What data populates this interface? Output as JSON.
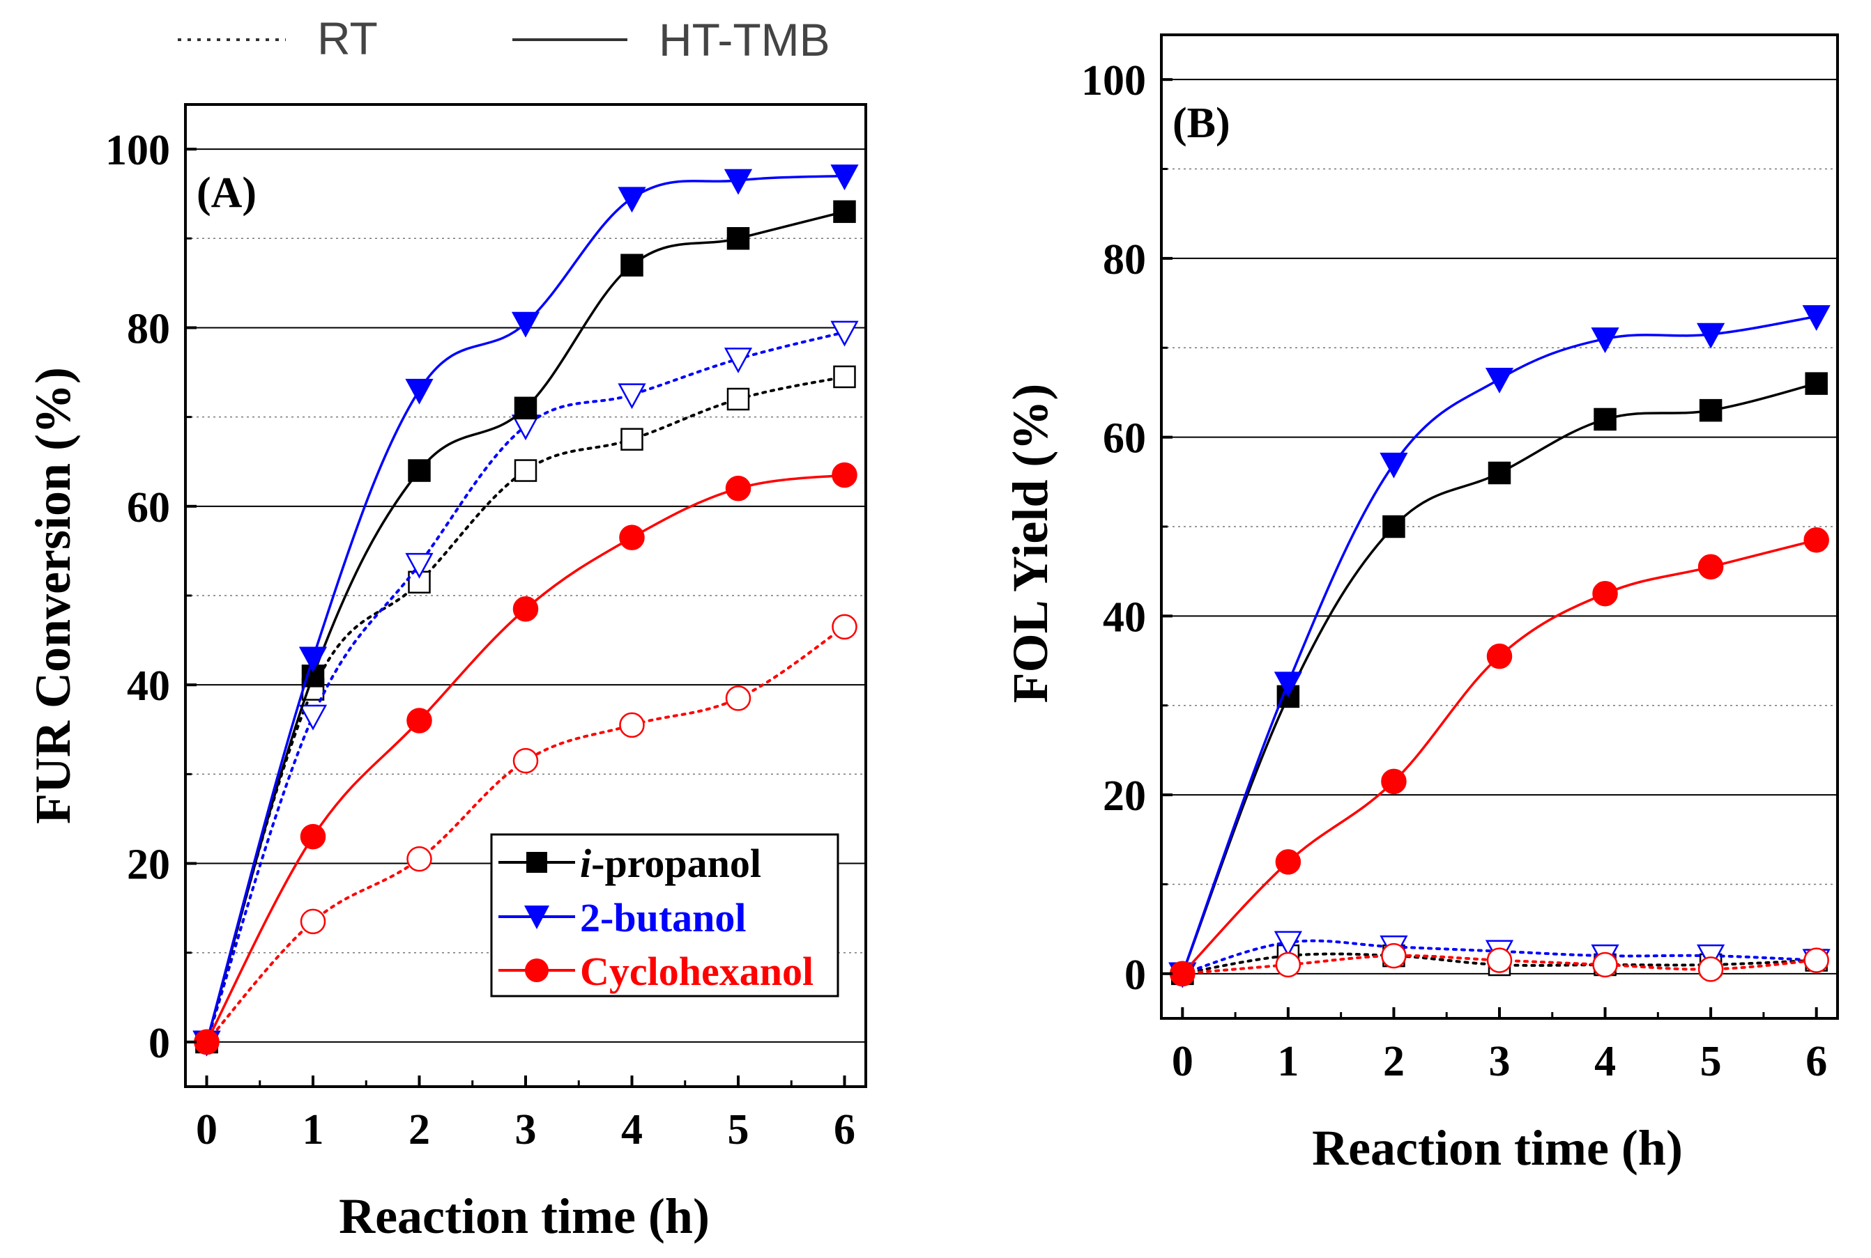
{
  "top_legend": {
    "dotted_label": "RT",
    "solid_label": "HT-TMB"
  },
  "legend": {
    "items": [
      {
        "prefix": "i",
        "text": "-propanol",
        "color": "#000000",
        "marker": "square"
      },
      {
        "prefix": "",
        "text": "2-butanol",
        "color": "#0000ff",
        "marker": "triangle-down"
      },
      {
        "prefix": "",
        "text": "Cyclohexanol",
        "color": "#ff0000",
        "marker": "circle"
      }
    ]
  },
  "chart_data": [
    {
      "type": "line",
      "panel_label": "(A)",
      "xlabel": "Reaction time (h)",
      "ylabel": "FUR Conversion (%)",
      "xlim": [
        -0.2,
        6.2
      ],
      "ylim": [
        -5,
        105
      ],
      "xticks": [
        "0",
        "1",
        "2",
        "3",
        "4",
        "5",
        "6"
      ],
      "yticks": [
        "0",
        "20",
        "40",
        "60",
        "80",
        "100"
      ],
      "x": [
        0,
        1,
        2,
        3,
        4,
        5,
        6
      ],
      "series": [
        {
          "name": "i-propanol (HT-TMB)",
          "color": "#000000",
          "marker": "square",
          "filled": true,
          "dash": "solid",
          "values": [
            0,
            41,
            64,
            71,
            87,
            90,
            93
          ]
        },
        {
          "name": "2-butanol (HT-TMB)",
          "color": "#0000ff",
          "marker": "triangle-down",
          "filled": true,
          "dash": "solid",
          "values": [
            0,
            43,
            73,
            80.5,
            94.5,
            96.5,
            97
          ]
        },
        {
          "name": "Cyclohexanol (HT-TMB)",
          "color": "#ff0000",
          "marker": "circle",
          "filled": true,
          "dash": "solid",
          "values": [
            0,
            23,
            36,
            48.5,
            56.5,
            62,
            63.5
          ]
        },
        {
          "name": "i-propanol (RT)",
          "color": "#000000",
          "marker": "square",
          "filled": false,
          "dash": "dotted",
          "values": [
            0,
            39.5,
            51.5,
            64,
            67.5,
            72,
            74.5
          ]
        },
        {
          "name": "2-butanol (RT)",
          "color": "#0000ff",
          "marker": "triangle-down",
          "filled": false,
          "dash": "dotted",
          "values": [
            0,
            36.5,
            53.5,
            69,
            72.5,
            76.5,
            79.5
          ]
        },
        {
          "name": "Cyclohexanol (RT)",
          "color": "#ff0000",
          "marker": "circle",
          "filled": false,
          "dash": "dotted",
          "values": [
            0,
            13.5,
            20.5,
            31.5,
            35.5,
            38.5,
            46.5
          ]
        }
      ]
    },
    {
      "type": "line",
      "panel_label": "(B)",
      "xlabel": "Reaction time (h)",
      "ylabel": "FOL Yield (%)",
      "xlim": [
        -0.2,
        6.2
      ],
      "ylim": [
        -5,
        105
      ],
      "xticks": [
        "0",
        "1",
        "2",
        "3",
        "4",
        "5",
        "6"
      ],
      "yticks": [
        "0",
        "20",
        "40",
        "60",
        "80",
        "100"
      ],
      "x": [
        0,
        1,
        2,
        3,
        4,
        5,
        6
      ],
      "series": [
        {
          "name": "i-propanol (HT-TMB)",
          "color": "#000000",
          "marker": "square",
          "filled": true,
          "dash": "solid",
          "values": [
            0,
            31,
            50,
            56,
            62,
            63,
            66
          ]
        },
        {
          "name": "2-butanol (HT-TMB)",
          "color": "#0000ff",
          "marker": "triangle-down",
          "filled": true,
          "dash": "solid",
          "values": [
            0,
            32.5,
            57,
            66.5,
            71,
            71.5,
            73.5
          ]
        },
        {
          "name": "Cyclohexanol (HT-TMB)",
          "color": "#ff0000",
          "marker": "circle",
          "filled": true,
          "dash": "solid",
          "values": [
            0,
            12.5,
            21.5,
            35.5,
            42.5,
            45.5,
            48.5
          ]
        },
        {
          "name": "i-propanol (RT)",
          "color": "#000000",
          "marker": "square",
          "filled": false,
          "dash": "dotted",
          "values": [
            0,
            2,
            2,
            1,
            1,
            1,
            1.5
          ]
        },
        {
          "name": "2-butanol (RT)",
          "color": "#0000ff",
          "marker": "triangle-down",
          "filled": false,
          "dash": "dotted",
          "values": [
            0,
            3.5,
            3,
            2.5,
            2,
            2,
            1.5
          ]
        },
        {
          "name": "Cyclohexanol (RT)",
          "color": "#ff0000",
          "marker": "circle",
          "filled": false,
          "dash": "dotted",
          "values": [
            0,
            1,
            2,
            1.5,
            1,
            0.5,
            1.5
          ]
        }
      ]
    }
  ]
}
